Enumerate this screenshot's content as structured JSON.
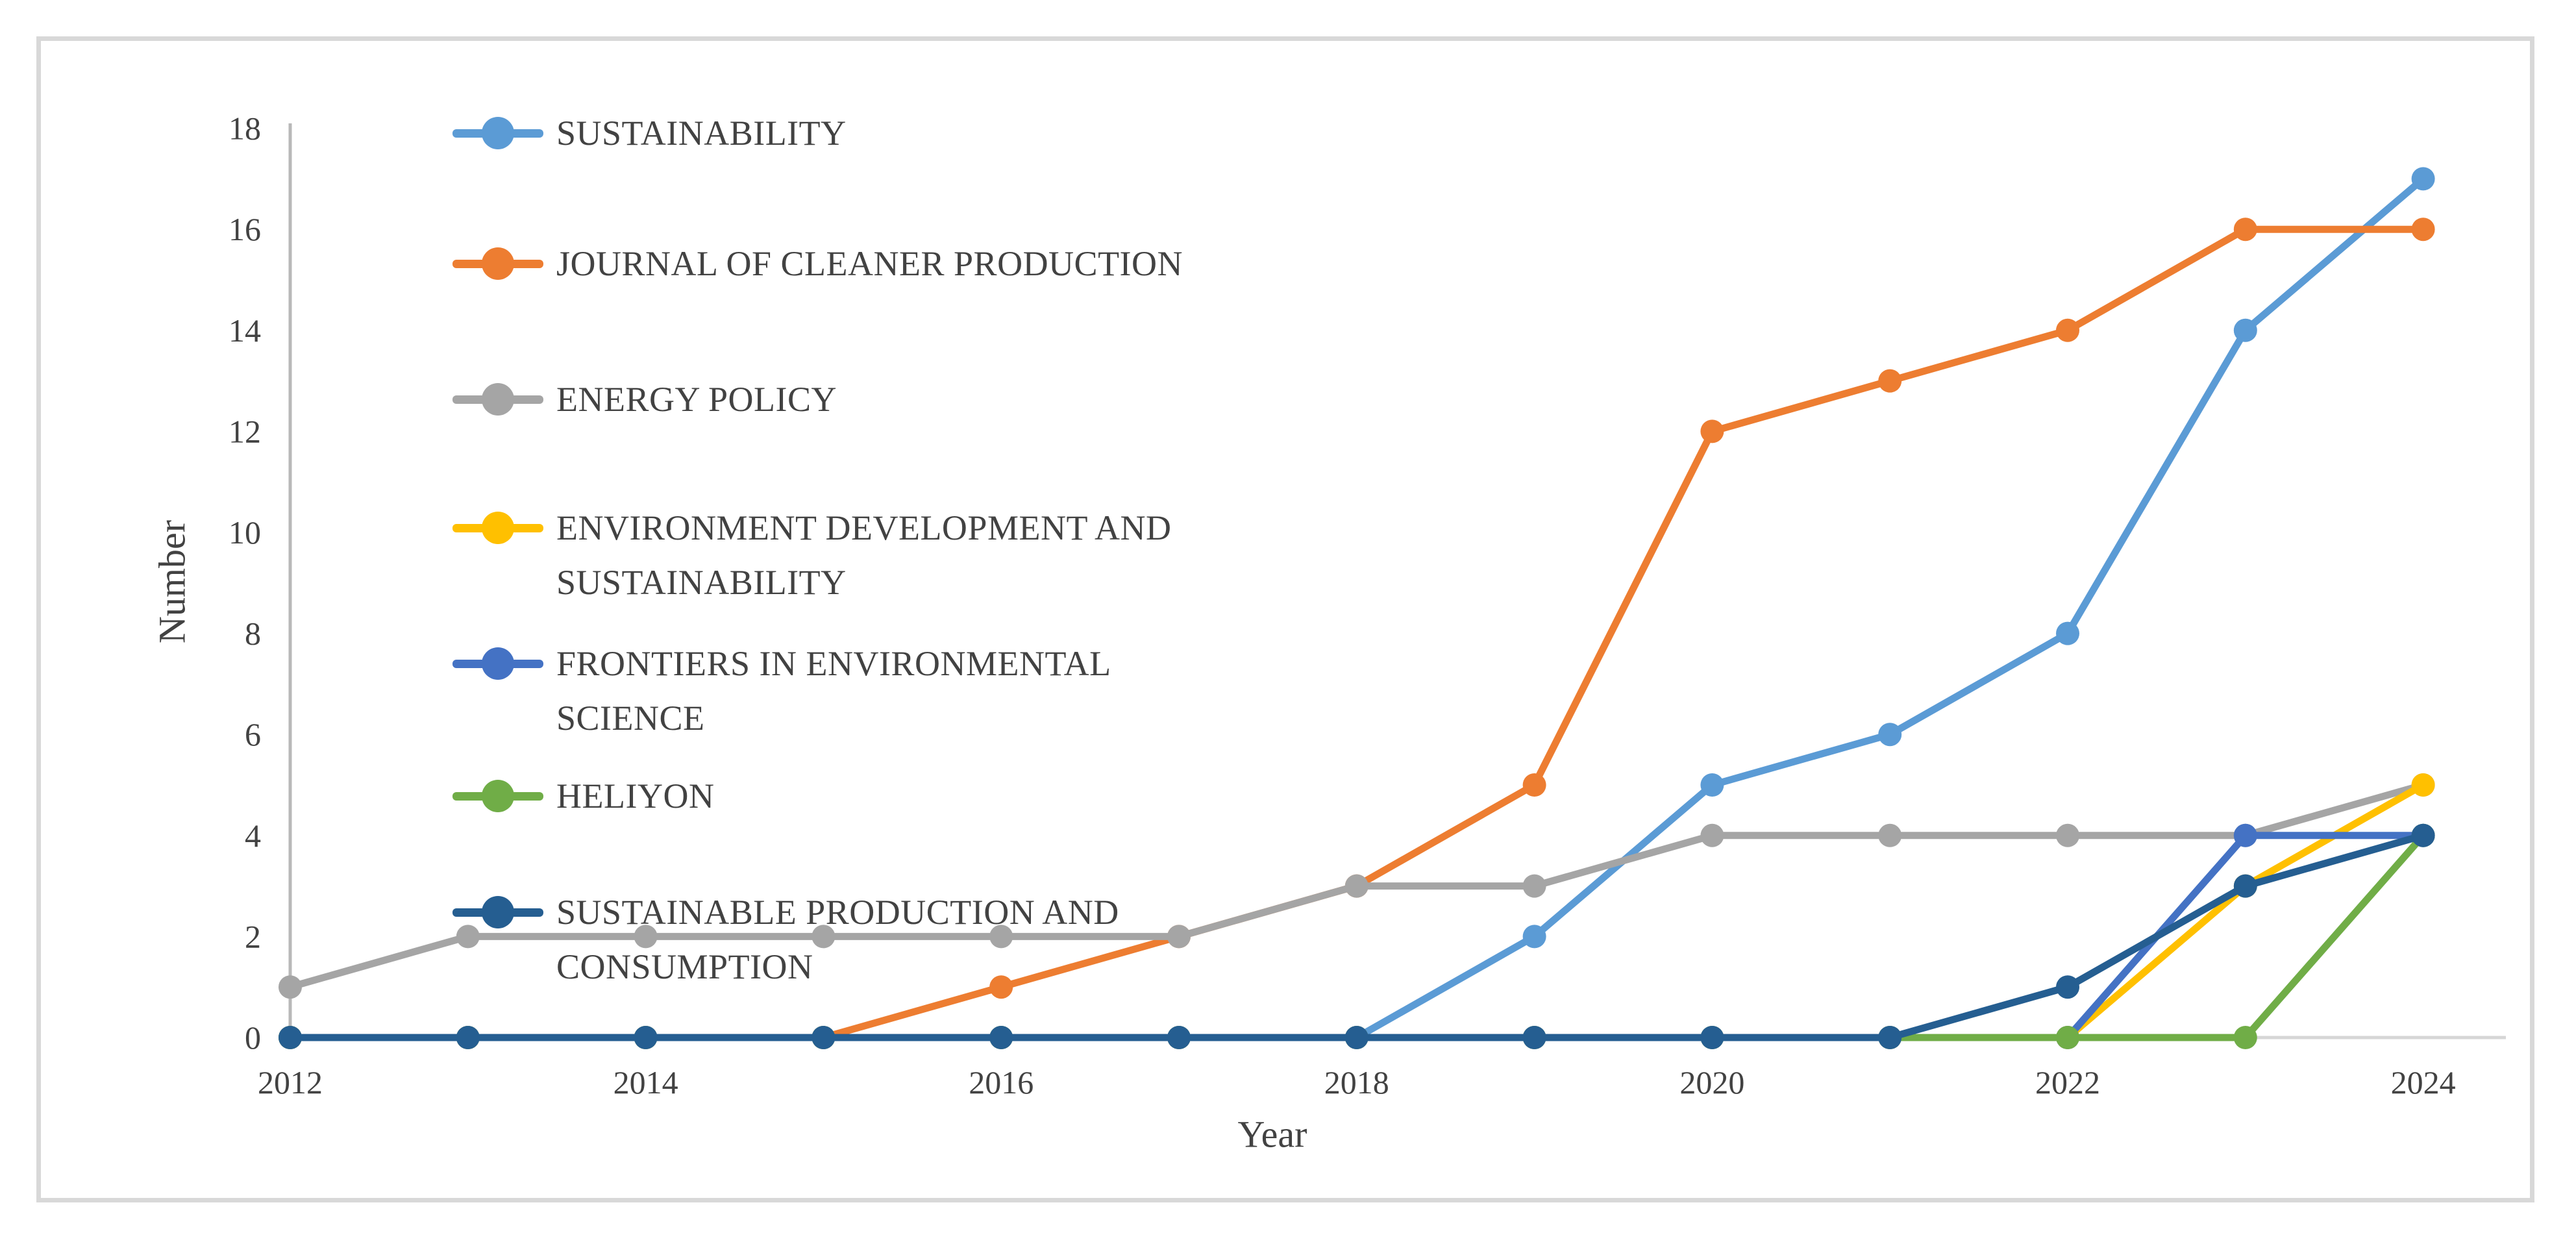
{
  "chart_data": {
    "type": "line",
    "title": "",
    "xlabel": "Year",
    "ylabel": "Number",
    "x": [
      2012,
      2013,
      2014,
      2015,
      2016,
      2017,
      2018,
      2019,
      2020,
      2021,
      2022,
      2023,
      2024
    ],
    "x_tick_labels": [
      "2012",
      "2014",
      "2016",
      "2018",
      "2020",
      "2022",
      "2024"
    ],
    "y_ticks": [
      0,
      2,
      4,
      6,
      8,
      10,
      12,
      14,
      16,
      18
    ],
    "ylim": [
      0,
      18
    ],
    "grid": false,
    "legend_position": "upper-left",
    "marker": "circle",
    "axis_color": "#B8B8B8",
    "baseline_color": "#D6D6D6",
    "text_color": "#424242",
    "frame_border_color": "#D8D8D8",
    "series": [
      {
        "name": "SUSTAINABILITY",
        "label_lines": [
          "SUSTAINABILITY"
        ],
        "color": "#5B9BD5",
        "values": [
          0,
          0,
          0,
          0,
          0,
          0,
          0,
          2,
          5,
          6,
          8,
          14,
          17
        ]
      },
      {
        "name": "JOURNAL OF CLEANER PRODUCTION",
        "label_lines": [
          "JOURNAL OF CLEANER PRODUCTION"
        ],
        "color": "#ED7D31",
        "values": [
          0,
          0,
          0,
          0,
          1,
          2,
          3,
          5,
          12,
          13,
          14,
          16,
          16
        ]
      },
      {
        "name": "ENERGY POLICY",
        "label_lines": [
          "ENERGY POLICY"
        ],
        "color": "#A5A5A5",
        "values": [
          1,
          2,
          2,
          2,
          2,
          2,
          3,
          3,
          4,
          4,
          4,
          4,
          5
        ]
      },
      {
        "name": "ENVIRONMENT DEVELOPMENT AND SUSTAINABILITY",
        "label_lines": [
          "ENVIRONMENT DEVELOPMENT AND",
          "SUSTAINABILITY"
        ],
        "color": "#FFC000",
        "values": [
          0,
          0,
          0,
          0,
          0,
          0,
          0,
          0,
          0,
          0,
          0,
          3,
          5
        ]
      },
      {
        "name": "FRONTIERS IN ENVIRONMENTAL SCIENCE",
        "label_lines": [
          "FRONTIERS IN ENVIRONMENTAL",
          "SCIENCE"
        ],
        "color": "#4472C4",
        "values": [
          0,
          0,
          0,
          0,
          0,
          0,
          0,
          0,
          0,
          0,
          0,
          4,
          4
        ]
      },
      {
        "name": "HELIYON",
        "label_lines": [
          "HELIYON"
        ],
        "color": "#70AD47",
        "values": [
          0,
          0,
          0,
          0,
          0,
          0,
          0,
          0,
          0,
          0,
          0,
          0,
          4
        ]
      },
      {
        "name": "SUSTAINABLE PRODUCTION AND CONSUMPTION",
        "label_lines": [
          "SUSTAINABLE PRODUCTION AND",
          "CONSUMPTION"
        ],
        "color": "#255E91",
        "values": [
          0,
          0,
          0,
          0,
          0,
          0,
          0,
          0,
          0,
          0,
          1,
          3,
          4
        ]
      }
    ]
  }
}
